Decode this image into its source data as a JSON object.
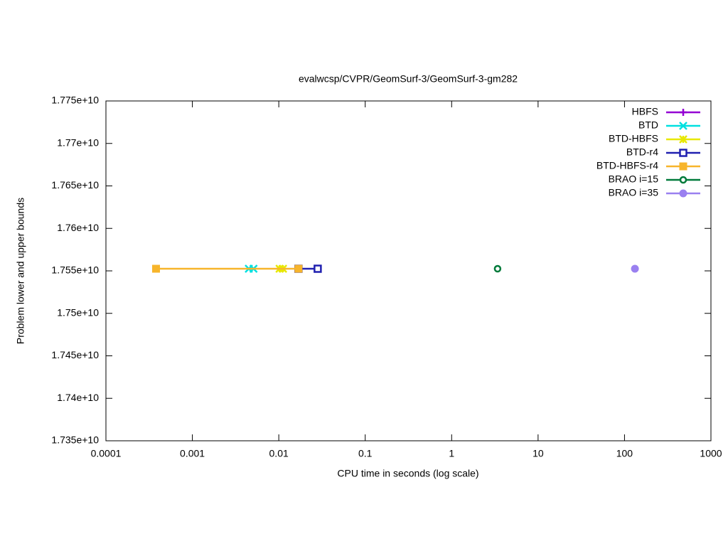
{
  "chart_data": {
    "type": "line",
    "title": "evalwcsp/CVPR/GeomSurf-3/GeomSurf-3-gm282",
    "x_label": "CPU time in seconds (log scale)",
    "y_label": "Problem lower and upper bounds",
    "xscale": "log",
    "xlim": [
      0.0001,
      1000
    ],
    "xticks": [
      0.0001,
      0.001,
      0.01,
      0.1,
      1,
      10,
      100,
      1000
    ],
    "ylim": [
      17350000000,
      17750000000
    ],
    "yticks": [
      {
        "value": 17350000000,
        "label": "1.735e+10"
      },
      {
        "value": 17400000000,
        "label": "1.74e+10"
      },
      {
        "value": 17450000000,
        "label": "1.745e+10"
      },
      {
        "value": 17500000000,
        "label": "1.75e+10"
      },
      {
        "value": 17550000000,
        "label": "1.755e+10"
      },
      {
        "value": 17600000000,
        "label": "1.76e+10"
      },
      {
        "value": 17650000000,
        "label": "1.765e+10"
      },
      {
        "value": 17700000000,
        "label": "1.77e+10"
      },
      {
        "value": 17750000000,
        "label": "1.775e+10"
      }
    ],
    "legend": "top-right",
    "series": [
      {
        "name": "HBFS",
        "color": "#9400d3",
        "marker": "plus",
        "x": [
          0.00038
        ],
        "values": [
          17552500000
        ]
      },
      {
        "name": "BTD",
        "color": "#00e0e0",
        "marker": "cross",
        "x": [
          0.0045,
          0.0051
        ],
        "values": [
          17552500000,
          17552500000
        ]
      },
      {
        "name": "BTD-HBFS",
        "color": "#e8e800",
        "marker": "star",
        "x": [
          0.0102,
          0.0112
        ],
        "values": [
          17552500000,
          17552500000
        ]
      },
      {
        "name": "BTD-r4",
        "color": "#2020b0",
        "marker": "square-open",
        "x": [
          0.0169,
          0.0282
        ],
        "values": [
          17552500000,
          17552500000
        ]
      },
      {
        "name": "BTD-HBFS-r4",
        "color": "#f7b52b",
        "marker": "square",
        "x": [
          0.00038,
          0.0169
        ],
        "values": [
          17552500000,
          17552500000
        ]
      },
      {
        "name": "BRAO i=15",
        "color": "#007a3a",
        "marker": "circle-open",
        "x": [
          3.4
        ],
        "values": [
          17552500000
        ]
      },
      {
        "name": "BRAO i=35",
        "color": "#9a80f0",
        "marker": "circle",
        "x": [
          132
        ],
        "values": [
          17552500000
        ]
      }
    ]
  }
}
